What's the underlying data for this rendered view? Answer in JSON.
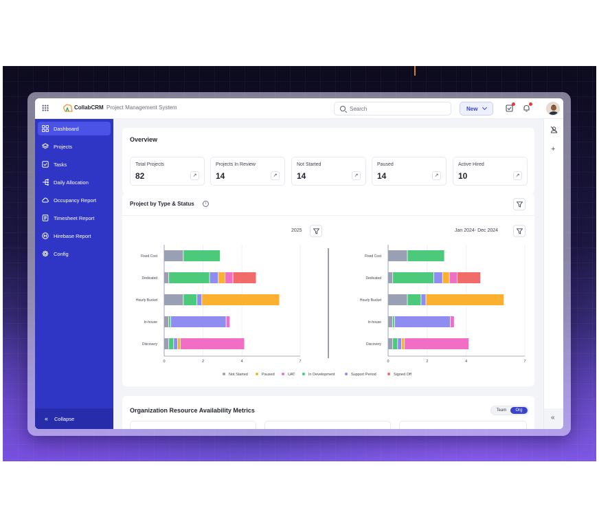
{
  "app": {
    "brand": "CollabCRM",
    "subtitle": "Project Management System",
    "search_placeholder": "Search",
    "new_label": "New"
  },
  "sidebar": {
    "items": [
      {
        "label": "Dashboard",
        "icon": "grid-icon",
        "active": true
      },
      {
        "label": "Projects",
        "icon": "layers-icon"
      },
      {
        "label": "Tasks",
        "icon": "checkbox-icon"
      },
      {
        "label": "Daily Allocation",
        "icon": "allocation-icon"
      },
      {
        "label": "Occupancy Report",
        "icon": "cloud-icon"
      },
      {
        "label": "Timesheet Report",
        "icon": "timesheet-icon"
      },
      {
        "label": "Hirebase Report",
        "icon": "hirebase-icon"
      },
      {
        "label": "Config",
        "icon": "gear-icon"
      }
    ],
    "collapse_label": "Collapse"
  },
  "overview": {
    "title": "Overview",
    "stats": [
      {
        "label": "Total Projects",
        "value": "82"
      },
      {
        "label": "Projects In Review",
        "value": "14"
      },
      {
        "label": "Not Started",
        "value": "14"
      },
      {
        "label": "Paused",
        "value": "14"
      },
      {
        "label": "Active Hired",
        "value": "10"
      }
    ]
  },
  "project_chart": {
    "title": "Project by Type & Status",
    "left_period": "2025",
    "right_period": "Jan 2024- Dec 2024"
  },
  "chart_data": [
    {
      "type": "bar",
      "orientation": "horizontal",
      "stacked": true,
      "title": "2025",
      "categories": [
        "Fixed Cost",
        "Dedicated",
        "Hourly Bucket",
        "In-house",
        "Discovery"
      ],
      "xticks": [
        "0",
        "2",
        "4",
        "7"
      ],
      "xlim": [
        0,
        7
      ],
      "legend_position": "bottom",
      "series": [
        {
          "name": "Not Started",
          "color": "#9aa0b4",
          "values": [
            1.0,
            0.25,
            1.0,
            0.25,
            0.25
          ]
        },
        {
          "name": "In Development",
          "color": "#4cc97a",
          "values": [
            1.9,
            2.1,
            0.7,
            0.1,
            0.25
          ]
        },
        {
          "name": "Support Period",
          "color": "#8f8ef0",
          "values": [
            0,
            0.45,
            0.25,
            2.85,
            0.2
          ]
        },
        {
          "name": "Paused",
          "color": "#fbb030",
          "values": [
            0,
            0.35,
            4.0,
            0,
            0.15
          ]
        },
        {
          "name": "UAT",
          "color": "#f06ec4",
          "values": [
            0,
            0.4,
            0,
            0.2,
            3.3
          ]
        },
        {
          "name": "Signed Off",
          "color": "#f26b6b",
          "values": [
            0,
            1.2,
            0,
            0,
            0
          ]
        }
      ]
    },
    {
      "type": "bar",
      "orientation": "horizontal",
      "stacked": true,
      "title": "Jan 2024- Dec 2024",
      "categories": [
        "Fixed Cost",
        "Dedicated",
        "Hourly Bucket",
        "In-house",
        "Discovery"
      ],
      "xticks": [
        "0",
        "2",
        "4",
        "7"
      ],
      "xlim": [
        0,
        7
      ],
      "legend_position": "bottom",
      "series": [
        {
          "name": "Not Started",
          "color": "#9aa0b4",
          "values": [
            1.0,
            0.25,
            1.0,
            0.25,
            0.25
          ]
        },
        {
          "name": "In Development",
          "color": "#4cc97a",
          "values": [
            1.9,
            2.1,
            0.7,
            0.1,
            0.25
          ]
        },
        {
          "name": "Support Period",
          "color": "#8f8ef0",
          "values": [
            0,
            0.45,
            0.25,
            2.85,
            0.2
          ]
        },
        {
          "name": "Paused",
          "color": "#fbb030",
          "values": [
            0,
            0.35,
            4.0,
            0,
            0.15
          ]
        },
        {
          "name": "UAT",
          "color": "#f06ec4",
          "values": [
            0,
            0.4,
            0,
            0.2,
            3.3
          ]
        },
        {
          "name": "Signed Off",
          "color": "#f26b6b",
          "values": [
            0,
            1.2,
            0,
            0,
            0
          ]
        }
      ]
    }
  ],
  "legend": [
    {
      "name": "Not Started",
      "color": "#9aa0b4"
    },
    {
      "name": "Paused",
      "color": "#fbb030"
    },
    {
      "name": "UAT",
      "color": "#f06ec4"
    },
    {
      "name": "In Development",
      "color": "#4cc97a"
    },
    {
      "name": "Support Period",
      "color": "#8f8ef0"
    },
    {
      "name": "Signed Off",
      "color": "#f26b6b"
    }
  ],
  "resource_metrics": {
    "title": "Organization Resource Availability Metrics",
    "toggle": {
      "team": "Team",
      "org": "Org"
    }
  },
  "colors": {
    "sidebar": "#2f35c4",
    "sidebar_active": "#4b52e6",
    "accent": "#3b44c8"
  }
}
